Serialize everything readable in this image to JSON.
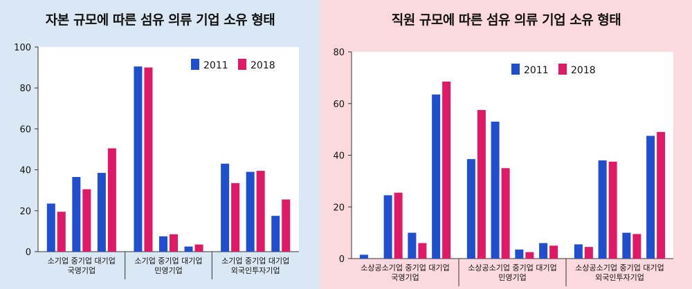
{
  "colors": {
    "s2011": "#1f4fcf",
    "s2018": "#e01966",
    "left_bg": "#d9e8f4",
    "right_bg": "#fcd9dc"
  },
  "chart_data": [
    {
      "type": "bar",
      "title": "자본 규모에 따른 섬유 의류 기업 소유 형태",
      "ylim": [
        0,
        100
      ],
      "yticks": [
        0,
        20,
        40,
        60,
        80,
        100
      ],
      "legend_position": "top-right",
      "grid": false,
      "groups": [
        "국영기업",
        "민영기업",
        "외국인투자기업"
      ],
      "subcategories": [
        "소기업",
        "중기업",
        "대기업"
      ],
      "series": [
        {
          "name": "2011",
          "values": [
            23.5,
            36.5,
            38.5,
            90.5,
            7.5,
            2.5,
            43,
            39,
            17.5
          ]
        },
        {
          "name": "2018",
          "values": [
            19.5,
            30.5,
            50.5,
            90,
            8.5,
            3.5,
            33.5,
            39.5,
            25.5
          ]
        }
      ]
    },
    {
      "type": "bar",
      "title": "직원 규모에 따른 섬유 의류 기업 소유 형태",
      "ylim": [
        0,
        80
      ],
      "yticks": [
        0,
        20,
        40,
        60,
        80
      ],
      "legend_position": "top-right",
      "grid": false,
      "groups": [
        "국영기업",
        "민영기업",
        "외국인투자기업"
      ],
      "subcategories": [
        "소상공",
        "소기업",
        "중기업",
        "대기업"
      ],
      "series": [
        {
          "name": "2011",
          "values": [
            1.5,
            24.5,
            10,
            63.5,
            38.5,
            53,
            3.5,
            6,
            5.5,
            38,
            10,
            47.5
          ]
        },
        {
          "name": "2018",
          "values": [
            0,
            25.5,
            6,
            68.5,
            57.5,
            35,
            2.5,
            5,
            4.5,
            37.5,
            9.5,
            49
          ]
        }
      ]
    }
  ]
}
